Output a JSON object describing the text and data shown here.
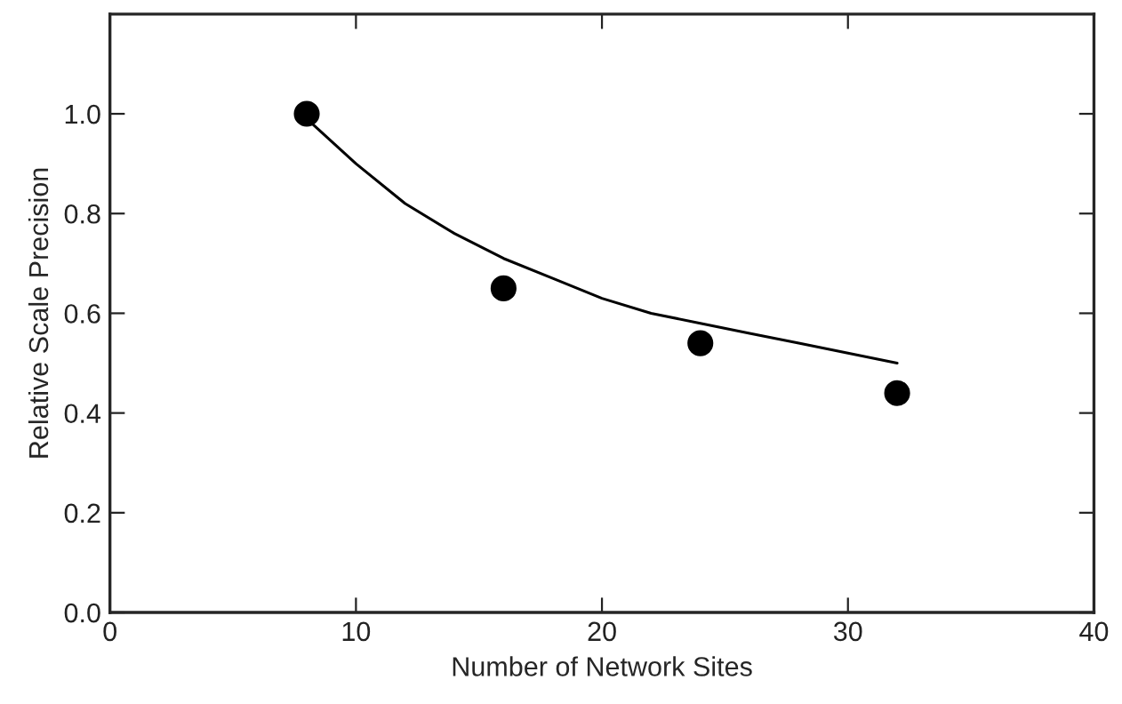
{
  "chart_data": {
    "type": "scatter",
    "xlabel": "Number of Network Sites",
    "ylabel": "Relative Scale Precision",
    "xlim": [
      0,
      40
    ],
    "xticks": [
      0,
      10,
      20,
      30,
      40
    ],
    "ylim": [
      0,
      1.2
    ],
    "yticks": [
      {
        "value": 0,
        "label": "0.0"
      },
      {
        "value": 0.2,
        "label": "0.2"
      },
      {
        "value": 0.4,
        "label": "0.4"
      },
      {
        "value": 0.6,
        "label": "0.6"
      },
      {
        "value": 0.8,
        "label": "0.8"
      },
      {
        "value": 1.0,
        "label": "1.0"
      }
    ],
    "grid": false,
    "legend": false,
    "series": [
      {
        "marker": "circle",
        "color": "#000000",
        "x": [
          8,
          16,
          24,
          32
        ],
        "values": [
          1.0,
          0.65,
          0.54,
          0.44
        ]
      },
      {
        "type": "line",
        "color": "#000000",
        "line_style": "solid",
        "marker": "none",
        "x": [
          8,
          10,
          12,
          14,
          16,
          18,
          20,
          22,
          24,
          26,
          28,
          30,
          32
        ],
        "values": [
          0.99,
          0.9,
          0.82,
          0.76,
          0.71,
          0.67,
          0.63,
          0.6,
          0.58,
          0.56,
          0.54,
          0.52,
          0.5
        ]
      }
    ]
  }
}
